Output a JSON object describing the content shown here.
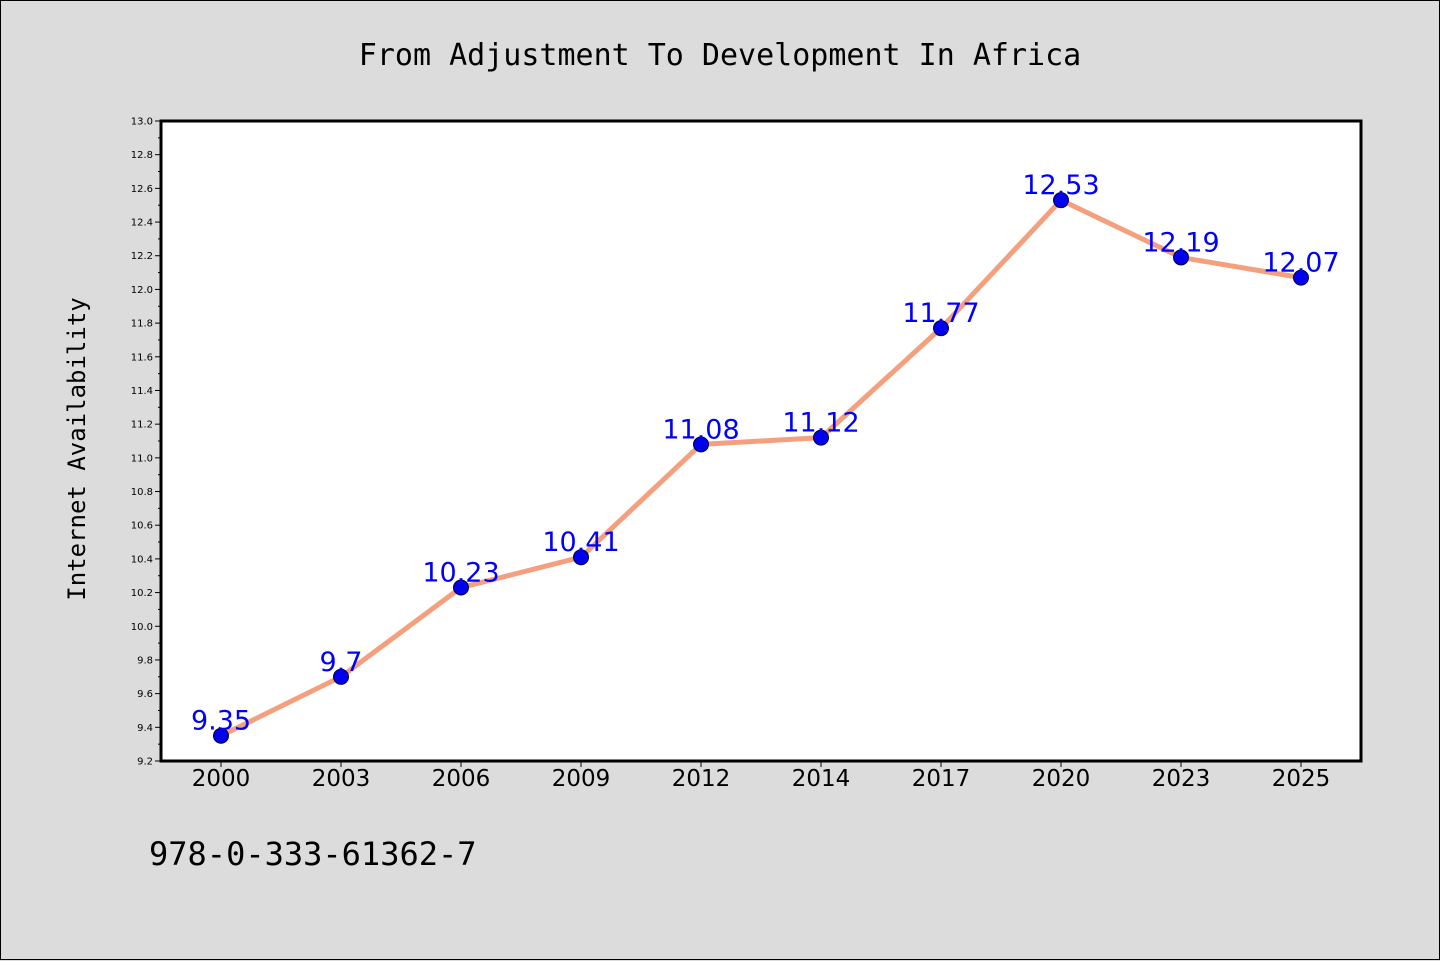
{
  "chart_data": {
    "type": "line",
    "title": "From Adjustment To Development In Africa",
    "xlabel": "",
    "ylabel": "Internet Availability",
    "categories": [
      "2000",
      "2003",
      "2006",
      "2009",
      "2012",
      "2014",
      "2017",
      "2020",
      "2023",
      "2025"
    ],
    "series": [
      {
        "values": [
          9.35,
          9.7,
          10.23,
          10.41,
          11.08,
          11.12,
          11.77,
          12.53,
          12.19,
          12.07
        ],
        "data_labels": [
          "9.35",
          "9.7",
          "10.23",
          "10.41",
          "11.08",
          "11.12",
          "11.77",
          "12.53",
          "12.19",
          "12.07"
        ]
      }
    ],
    "ylim": [
      9.2,
      13.0
    ],
    "yticks": [
      "9.2",
      "9.4",
      "9.6",
      "9.8",
      "10.0",
      "10.2",
      "10.4",
      "10.6",
      "10.8",
      "11.0",
      "11.2",
      "11.4",
      "11.6",
      "11.8",
      "12.0",
      "12.2",
      "12.4",
      "12.6",
      "12.8",
      "13.0"
    ],
    "grid": false,
    "line_color": "#f4a07e",
    "marker_color": "#0000ee",
    "label_color": "#0000ff"
  },
  "footer": {
    "isbn": "978-0-333-61362-7"
  }
}
